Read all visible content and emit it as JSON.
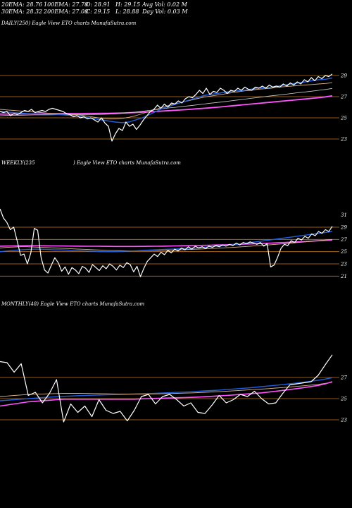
{
  "header": {
    "ema20": "20EMA: 28.76",
    "ema100": "100EMA: 27.78",
    "open": "O: 28.91",
    "high": "H: 29.15",
    "avg_vol": "Avg Vol: 0.02  M",
    "ema30": "30EMA: 28.32",
    "ema200": "200EMA: 27.08",
    "close": "C: 29.15",
    "low": "L: 28.88",
    "day_vol": "Day Vol: 0.03 M"
  },
  "panels": [
    {
      "label_left": "DAILY(250) Eagle  View  ETO charts MunafaSutra.com",
      "label_right": ""
    },
    {
      "label_left": "WEEKLY(235",
      "label_right": ") Eagle  View  ETO charts MunafaSutra.com"
    },
    {
      "label_left": "MONTHLY(48) Eagle  View  ETO charts MunafaSutra.com",
      "label_right": ""
    }
  ],
  "colors": {
    "background": "#000000",
    "price": "#ffffff",
    "ema_blue": "#1f5fe0",
    "ema_pink": "#ff55ff",
    "ema_tan": "#d9b38c",
    "ema_gray": "#cccccc",
    "level_line": "#c8761e"
  },
  "chart_data": [
    {
      "type": "line",
      "title": "DAILY(250)",
      "ylim": [
        22,
        30
      ],
      "yticks": [
        "29",
        "27",
        "25",
        "23"
      ],
      "levels": [
        29,
        27,
        25,
        23
      ],
      "series": [
        {
          "name": "",
          "values": [
            25.6,
            25.5,
            25.6,
            25.2,
            25.4,
            25.3,
            25.5,
            25.7,
            25.6,
            25.8,
            25.5,
            25.6,
            25.7,
            25.6,
            25.8,
            25.9,
            25.8,
            25.7,
            25.6,
            25.4,
            25.3,
            25.1,
            25.2,
            25.0,
            25.1,
            24.9,
            25.0,
            24.8,
            24.6,
            25.0,
            24.5,
            24.2,
            22.8,
            23.5,
            24.0,
            23.8,
            24.6,
            24.2,
            24.4,
            23.9,
            24.3,
            24.8,
            25.2,
            25.6,
            25.8,
            26.2,
            25.9,
            26.3,
            26.0,
            26.4,
            26.3,
            26.6,
            26.4,
            26.8,
            27.0,
            26.9,
            27.2,
            27.6,
            27.3,
            27.8,
            27.2,
            27.5,
            27.4,
            27.8,
            27.6,
            27.3,
            27.6,
            27.5,
            27.8,
            27.6,
            27.9,
            27.7,
            27.6,
            27.9,
            27.8,
            28.0,
            27.8,
            28.1,
            27.9,
            28.0,
            27.9,
            28.2,
            28.0,
            28.3,
            28.1,
            28.4,
            28.2,
            28.6,
            28.4,
            28.8,
            28.5,
            28.9,
            28.7,
            29.0,
            28.9,
            29.15
          ]
        },
        {
          "name": "",
          "values": [
            25.6,
            25.55,
            25.5,
            25.45,
            25.4,
            25.38,
            25.36,
            25.35,
            25.34,
            25.3,
            25.25,
            25.2,
            25.1,
            25.0,
            24.9,
            24.8,
            24.7,
            24.6,
            24.55,
            24.6,
            24.8,
            25.0,
            25.3,
            25.6,
            25.9,
            26.1,
            26.3,
            26.5,
            26.7,
            26.9,
            27.1,
            27.2,
            27.3,
            27.4,
            27.5,
            27.55,
            27.6,
            27.7,
            27.8,
            27.85,
            27.9,
            28.0,
            28.1,
            28.2,
            28.3,
            28.4,
            28.5,
            28.6,
            28.65,
            28.76
          ]
        },
        {
          "name": "",
          "values": [
            25.8,
            25.75,
            25.7,
            25.65,
            25.6,
            25.55,
            25.5,
            25.45,
            25.42,
            25.4,
            25.35,
            25.3,
            25.25,
            25.15,
            25.05,
            24.95,
            24.9,
            24.9,
            24.95,
            25.05,
            25.2,
            25.4,
            25.6,
            25.8,
            26.0,
            26.2,
            26.35,
            26.5,
            26.65,
            26.8,
            26.95,
            27.05,
            27.15,
            27.25,
            27.35,
            27.45,
            27.55,
            27.6,
            27.7,
            27.75,
            27.8,
            27.9,
            27.95,
            28.0,
            28.05,
            28.1,
            28.15,
            28.2,
            28.25,
            28.32
          ]
        },
        {
          "name": "",
          "values": [
            25.2,
            25.22,
            25.24,
            25.25,
            25.26,
            25.27,
            25.28,
            25.28,
            25.29,
            25.3,
            25.3,
            25.3,
            25.31,
            25.31,
            25.32,
            25.33,
            25.35,
            25.38,
            25.42,
            25.48,
            25.55,
            25.62,
            25.7,
            25.78,
            25.86,
            25.94,
            26.0,
            26.08,
            26.15,
            26.22,
            26.3,
            26.38,
            26.45,
            26.52,
            26.6,
            26.68,
            26.76,
            26.84,
            26.92,
            27.0,
            27.08,
            27.15,
            27.22,
            27.3,
            27.38,
            27.45,
            27.52,
            27.6,
            27.68,
            27.78
          ]
        },
        {
          "name": "",
          "values": [
            25.35,
            25.36,
            25.36,
            25.37,
            25.37,
            25.38,
            25.38,
            25.38,
            25.39,
            25.39,
            25.4,
            25.4,
            25.4,
            25.41,
            25.41,
            25.42,
            25.43,
            25.44,
            25.46,
            25.48,
            25.5,
            25.53,
            25.56,
            25.6,
            25.64,
            25.68,
            25.72,
            25.76,
            25.8,
            25.85,
            25.9,
            25.95,
            26.0,
            26.06,
            26.12,
            26.18,
            26.24,
            26.3,
            26.36,
            26.42,
            26.48,
            26.54,
            26.6,
            26.66,
            26.72,
            26.78,
            26.84,
            26.9,
            26.98,
            27.08
          ]
        }
      ]
    },
    {
      "type": "line",
      "title": "WEEKLY(235)",
      "ylim": [
        20,
        32
      ],
      "yticks": [
        "31",
        "29",
        "27",
        "25",
        "23",
        "21"
      ],
      "levels": [
        29,
        27,
        25,
        23,
        21
      ],
      "series": [
        {
          "name": "",
          "values": [
            32.0,
            30.5,
            29.8,
            28.6,
            29.0,
            26.8,
            24.4,
            24.6,
            23.0,
            24.8,
            28.8,
            28.5,
            24.0,
            22.0,
            21.5,
            22.8,
            24.0,
            23.2,
            21.8,
            22.5,
            21.3,
            22.4,
            22.0,
            21.4,
            22.6,
            22.3,
            21.6,
            22.9,
            22.4,
            21.9,
            22.7,
            22.2,
            23.0,
            22.6,
            22.0,
            22.8,
            22.4,
            23.2,
            22.9,
            21.7,
            22.6,
            20.9,
            22.3,
            23.4,
            24.0,
            24.6,
            24.2,
            24.9,
            24.5,
            25.2,
            24.8,
            25.4,
            25.1,
            25.6,
            25.3,
            25.8,
            25.4,
            25.9,
            25.6,
            25.8,
            25.5,
            25.9,
            25.7,
            26.0,
            25.8,
            26.1,
            25.9,
            26.2,
            26.0,
            26.4,
            26.1,
            26.5,
            26.3,
            26.6,
            26.4,
            26.2,
            26.5,
            25.9,
            26.3,
            22.5,
            22.8,
            24.0,
            25.5,
            26.2,
            26.0,
            26.8,
            26.5,
            27.2,
            26.9,
            27.5,
            27.2,
            27.9,
            27.6,
            28.3,
            28.0,
            28.6,
            28.3,
            29.15
          ]
        },
        {
          "name": "",
          "values": [
            25.0,
            25.1,
            25.2,
            25.3,
            25.35,
            25.4,
            25.4,
            25.35,
            25.3,
            25.3,
            25.25,
            25.2,
            25.15,
            25.1,
            25.05,
            25.0,
            25.0,
            25.0,
            25.05,
            25.1,
            25.15,
            25.2,
            25.25,
            25.3,
            25.35,
            25.4,
            25.45,
            25.5,
            25.55,
            25.6,
            25.7,
            25.8,
            25.9,
            26.0,
            26.1,
            26.2,
            26.35,
            26.5,
            26.65,
            26.8,
            26.95,
            27.1,
            27.25,
            27.4,
            27.55,
            27.7,
            27.85,
            28.0,
            28.15,
            28.3
          ]
        },
        {
          "name": "",
          "values": [
            25.6,
            25.7,
            25.75,
            25.8,
            25.8,
            25.75,
            25.7,
            25.65,
            25.6,
            25.55,
            25.5,
            25.45,
            25.4,
            25.35,
            25.3,
            25.25,
            25.2,
            25.18,
            25.16,
            25.15,
            25.15,
            25.16,
            25.18,
            25.2,
            25.22,
            25.25,
            25.28,
            25.32,
            25.36,
            25.4,
            25.45,
            25.5,
            25.56,
            25.62,
            25.68,
            25.75,
            25.82,
            25.9,
            25.98,
            26.06,
            26.14,
            26.22,
            26.3,
            26.4,
            26.5,
            26.6,
            26.7,
            26.8,
            26.9,
            27.0
          ]
        },
        {
          "name": "",
          "values": [
            25.9,
            25.92,
            25.94,
            25.95,
            25.96,
            25.96,
            25.96,
            25.95,
            25.94,
            25.93,
            25.92,
            25.91,
            25.9,
            25.89,
            25.88,
            25.87,
            25.86,
            25.85,
            25.85,
            25.85,
            25.85,
            25.86,
            25.87,
            25.88,
            25.9,
            25.92,
            25.94,
            25.96,
            25.98,
            26.0,
            26.03,
            26.06,
            26.09,
            26.12,
            26.15,
            26.19,
            26.23,
            26.27,
            26.31,
            26.35,
            26.4,
            26.45,
            26.5,
            26.55,
            26.6,
            26.66,
            26.72,
            26.78,
            26.84,
            26.9
          ]
        }
      ]
    },
    {
      "type": "line",
      "title": "MONTHLY(48)",
      "ylim": [
        22,
        29
      ],
      "yticks": [
        "27",
        "25",
        "23"
      ],
      "levels": [
        27,
        25,
        23
      ],
      "series": [
        {
          "name": "",
          "values": [
            28.5,
            28.4,
            27.5,
            28.3,
            25.3,
            25.6,
            24.6,
            25.5,
            26.8,
            22.8,
            24.5,
            23.7,
            24.3,
            23.3,
            24.9,
            23.9,
            23.6,
            23.8,
            22.9,
            23.9,
            25.2,
            25.4,
            24.5,
            25.2,
            25.4,
            24.9,
            24.3,
            24.6,
            23.7,
            23.6,
            24.4,
            25.3,
            24.6,
            24.9,
            25.4,
            25.2,
            25.7,
            25.0,
            24.5,
            24.6,
            25.5,
            26.3,
            26.4,
            26.5,
            26.6,
            27.2,
            28.2,
            29.15
          ]
        },
        {
          "name": "",
          "values": [
            24.3,
            24.4,
            24.5,
            24.6,
            24.7,
            24.75,
            24.8,
            24.85,
            24.9,
            24.95,
            24.95,
            24.95,
            24.95,
            24.95,
            24.95,
            24.95,
            24.95,
            24.95,
            24.95,
            24.95,
            24.98,
            25.0,
            25.02,
            25.04,
            25.06,
            25.08,
            25.1,
            25.12,
            25.15,
            25.18,
            25.22,
            25.26,
            25.3,
            25.35,
            25.4,
            25.45,
            25.5,
            25.55,
            25.62,
            25.7,
            25.78,
            25.86,
            25.95,
            26.05,
            26.15,
            26.25,
            26.4,
            26.6
          ]
        },
        {
          "name": "",
          "values": [
            25.2,
            25.25,
            25.3,
            25.35,
            25.4,
            25.42,
            25.44,
            25.46,
            25.48,
            25.5,
            25.5,
            25.5,
            25.49,
            25.48,
            25.47,
            25.46,
            25.45,
            25.44,
            25.43,
            25.43,
            25.43,
            25.44,
            25.45,
            25.46,
            25.48,
            25.5,
            25.52,
            25.54,
            25.57,
            25.6,
            25.63,
            25.66,
            25.7,
            25.74,
            25.78,
            25.82,
            25.86,
            25.9,
            25.95,
            26.0,
            26.05,
            26.1,
            26.16,
            26.22,
            26.28,
            26.35,
            26.45,
            26.55
          ]
        },
        {
          "name": "",
          "values": [
            24.8,
            24.85,
            24.9,
            24.95,
            25.0,
            25.05,
            25.1,
            25.14,
            25.18,
            25.22,
            25.25,
            25.28,
            25.3,
            25.32,
            25.34,
            25.36,
            25.38,
            25.4,
            25.42,
            25.44,
            25.46,
            25.48,
            25.5,
            25.53,
            25.56,
            25.59,
            25.62,
            25.65,
            25.69,
            25.73,
            25.77,
            25.81,
            25.86,
            25.91,
            25.96,
            26.01,
            26.07,
            26.13,
            26.19,
            26.26,
            26.33,
            26.4,
            26.48,
            26.56,
            26.65,
            26.74,
            26.85,
            26.98
          ]
        }
      ]
    }
  ]
}
